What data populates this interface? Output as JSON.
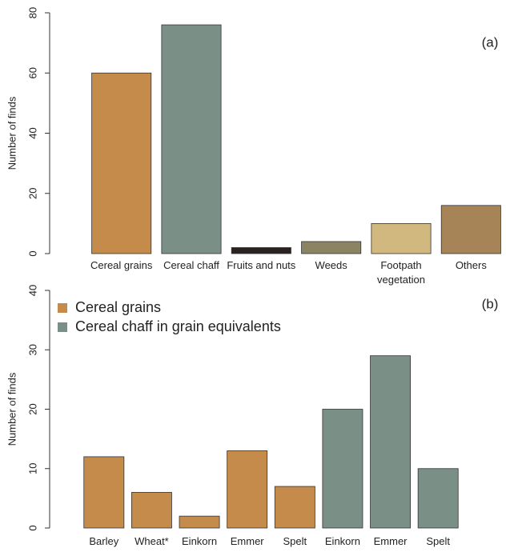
{
  "chart_data": [
    {
      "type": "bar",
      "annotation": "(a)",
      "y_label": "Number of finds",
      "categories": [
        "Cereal grains",
        "Cereal chaff",
        "Fruits and nuts",
        "Weeds",
        "Footpath vegetation",
        "Others"
      ],
      "values": [
        60,
        76,
        2,
        4,
        10,
        16
      ],
      "colors": [
        "#c48b4a",
        "#7a8f86",
        "#2a2220",
        "#8b8463",
        "#d1b87e",
        "#a68457"
      ],
      "ylim": [
        0,
        80
      ],
      "yticks": [
        0,
        20,
        40,
        60,
        80
      ]
    },
    {
      "type": "bar",
      "annotation": "(b)",
      "y_label": "Number of finds",
      "categories": [
        "Barley",
        "Wheat*",
        "Einkorn",
        "Emmer",
        "Spelt",
        "Einkorn",
        "Emmer",
        "Spelt"
      ],
      "series": [
        {
          "name": "Cereal grains",
          "color": "#c48b4a",
          "values": [
            12,
            6,
            2,
            13,
            7,
            null,
            null,
            null
          ]
        },
        {
          "name": "Cereal chaff in grain equivalents",
          "color": "#7a8f86",
          "values": [
            null,
            null,
            null,
            null,
            null,
            20,
            29,
            10
          ]
        }
      ],
      "ylim": [
        0,
        40
      ],
      "yticks": [
        0,
        10,
        20,
        30,
        40
      ],
      "legend": "top left"
    }
  ]
}
